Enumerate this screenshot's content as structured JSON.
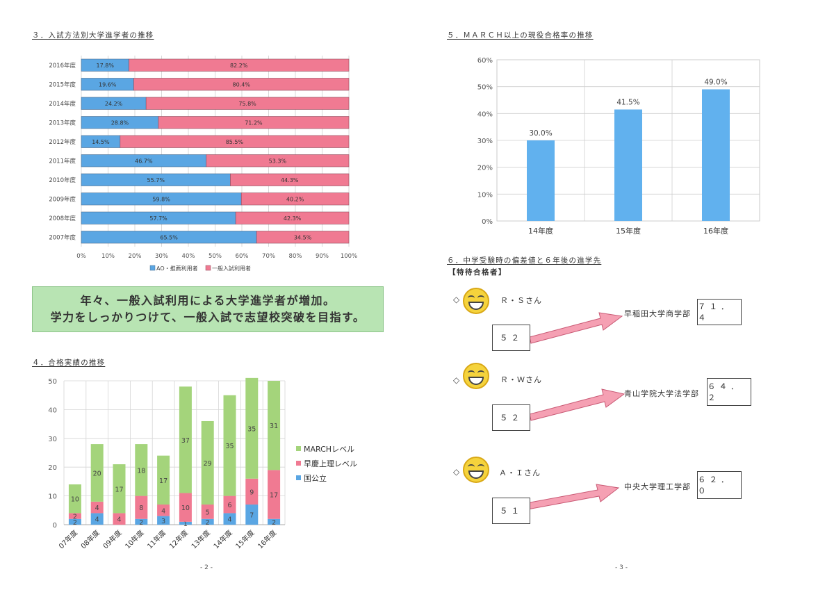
{
  "page2": {
    "section3_title": "３．入試方法別大学進学者の推移",
    "section4_title": "４．合格実績の推移",
    "page_number": "- 2 -",
    "banner": {
      "line1": "年々、一般入試利用による大学進学者が増加。",
      "line2": "学力をしっかりつけて、一般入試で志望校突破を目指す。"
    }
  },
  "page3": {
    "section5_title": "５．ＭＡＲＣＨ以上の現役合格率の推移",
    "section6_title": "６．中学受験時の偏差値と６年後の進学先",
    "section6_subtitle": "【特待合格者】",
    "page_number": "- 3 -",
    "students": [
      {
        "marker": "◇",
        "name": "Ｒ・Ｓさん",
        "score": "５２",
        "destination": "早稲田大学商学部",
        "dest_value": "７１．４"
      },
      {
        "marker": "◇",
        "name": "Ｒ・Ｗさん",
        "score": "５２",
        "destination": "青山学院大学法学部",
        "dest_value": "６４．２"
      },
      {
        "marker": "◇",
        "name": "Ａ・Ｉさん",
        "score": "５１",
        "destination": "中央大学理工学部",
        "dest_value": "６２．０"
      }
    ]
  },
  "colors": {
    "blue": "#5aa6e3",
    "red": "#f07a92",
    "green": "#a4d47b",
    "bar_blue": "#61b1ee",
    "arrow": "#f5a0b3"
  },
  "chart_data": [
    {
      "type": "bar",
      "orientation": "horizontal",
      "stacked": "percent",
      "categories": [
        "2016年度",
        "2015年度",
        "2014年度",
        "2013年度",
        "2012年度",
        "2011年度",
        "2010年度",
        "2009年度",
        "2008年度",
        "2007年度"
      ],
      "series": [
        {
          "name": "AO・推薦利用者",
          "values": [
            17.8,
            19.6,
            24.2,
            28.8,
            14.5,
            46.7,
            55.7,
            59.8,
            57.7,
            65.5
          ],
          "labels": [
            "17.8%",
            "19.6%",
            "24.2%",
            "28.8%",
            "14.5%",
            "46.7%",
            "55.7%",
            "59.8%",
            "57.7%",
            "65.5%"
          ]
        },
        {
          "name": "一般入試利用者",
          "values": [
            82.2,
            80.4,
            75.8,
            71.2,
            85.5,
            53.3,
            44.3,
            40.2,
            42.3,
            34.5
          ],
          "labels": [
            "82.2%",
            "80.4%",
            "75.8%",
            "71.2%",
            "85.5%",
            "53.3%",
            "44.3%",
            "40.2%",
            "42.3%",
            "34.5%"
          ]
        }
      ],
      "xticks": [
        "0%",
        "10%",
        "20%",
        "30%",
        "40%",
        "50%",
        "60%",
        "70%",
        "80%",
        "90%",
        "100%"
      ],
      "xlim": [
        0,
        100
      ],
      "legend": "bottom",
      "grid": true
    },
    {
      "type": "bar",
      "categories": [
        "14年度",
        "15年度",
        "16年度"
      ],
      "values": [
        30.0,
        41.5,
        49.0
      ],
      "labels": [
        "30.0%",
        "41.5%",
        "49.0%"
      ],
      "yticks": [
        "0%",
        "10%",
        "20%",
        "30%",
        "40%",
        "50%",
        "60%"
      ],
      "ylim": [
        0,
        60
      ],
      "grid": true
    },
    {
      "type": "bar",
      "stacked": true,
      "categories": [
        "07年度",
        "08年度",
        "09年度",
        "10年度",
        "11年度",
        "12年度",
        "13年度",
        "14年度",
        "15年度",
        "16年度"
      ],
      "series": [
        {
          "name": "国公立",
          "values": [
            2,
            4,
            0,
            2,
            3,
            1,
            2,
            4,
            7,
            2
          ]
        },
        {
          "name": "早慶上理レベル",
          "values": [
            2,
            4,
            4,
            8,
            4,
            10,
            5,
            6,
            9,
            17
          ]
        },
        {
          "name": "MARCHレベル",
          "values": [
            10,
            20,
            17,
            18,
            17,
            37,
            29,
            35,
            35,
            31
          ]
        }
      ],
      "yticks": [
        "0",
        "10",
        "20",
        "30",
        "40",
        "50"
      ],
      "ylim": [
        0,
        50
      ],
      "legend": "right",
      "grid": true
    }
  ]
}
